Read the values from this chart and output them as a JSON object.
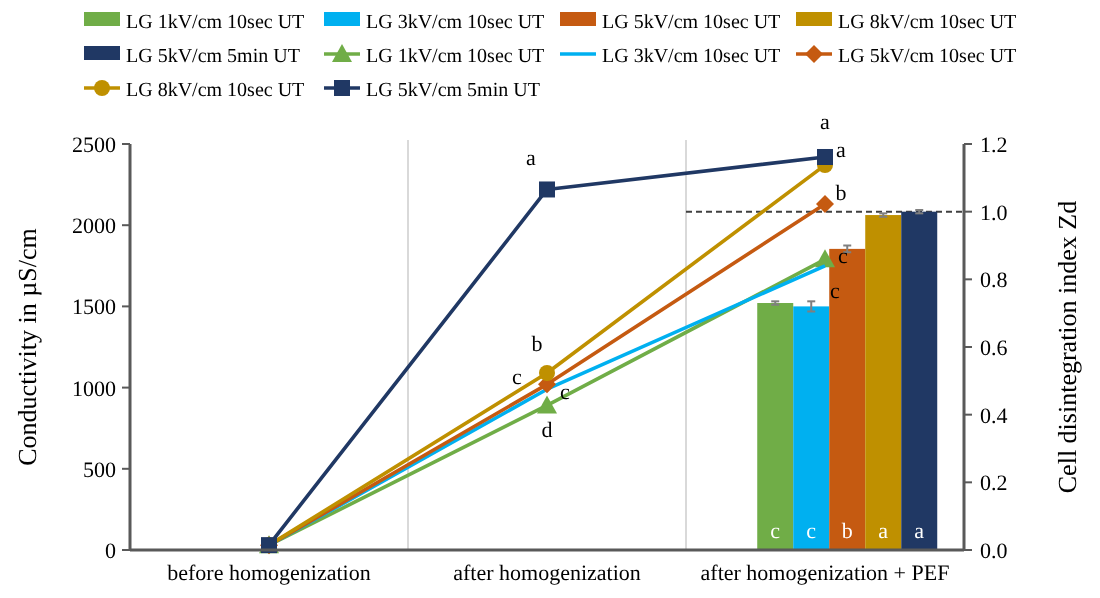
{
  "chart_data": {
    "type": "line",
    "categories": [
      "before homogenization",
      "after homogenization",
      "after homogenization + PEF"
    ],
    "ylabel": "Conductivity in µS/cm",
    "y2label": "Cell disintegration index Zd",
    "ylim": [
      0,
      2500
    ],
    "yticks": [
      0,
      500,
      1000,
      1500,
      2000,
      2500
    ],
    "y2lim": [
      0,
      1.2
    ],
    "y2ticks": [
      {
        "value": 0,
        "label": "0.0"
      },
      {
        "value": 0.2,
        "label": "0.2"
      },
      {
        "value": 0.4,
        "label": "0.4"
      },
      {
        "value": 0.6,
        "label": "0.6"
      },
      {
        "value": 0.8,
        "label": "0.8"
      },
      {
        "value": 1,
        "label": "1.0"
      },
      {
        "value": 1.2,
        "label": "1.2"
      }
    ],
    "grid": "x",
    "legend": "top",
    "ref_lines": [
      {
        "axis": "y2",
        "value": 1,
        "color": "#404040",
        "line_style": "dashed"
      }
    ],
    "series": [
      {
        "type": "bar",
        "axis": "y2",
        "name": "LG 1kV/cm 10sec UT",
        "color": "#70ad47",
        "values": [
          null,
          null,
          0.73
        ],
        "errors": [
          null,
          null,
          0.005
        ],
        "value_labels": [
          null,
          null,
          "c"
        ]
      },
      {
        "type": "bar",
        "axis": "y2",
        "name": "LG 3kV/cm 10sec UT",
        "color": "#00b0f0",
        "values": [
          null,
          null,
          0.72
        ],
        "errors": [
          null,
          null,
          0.015
        ],
        "value_labels": [
          null,
          null,
          "c"
        ]
      },
      {
        "type": "bar",
        "axis": "y2",
        "name": "LG 5kV/cm 10sec UT",
        "color": "#c55a11",
        "values": [
          null,
          null,
          0.89
        ],
        "errors": [
          null,
          null,
          0.01
        ],
        "value_labels": [
          null,
          null,
          "b"
        ]
      },
      {
        "type": "bar",
        "axis": "y2",
        "name": "LG 8kV/cm 10sec UT",
        "color": "#bf9000",
        "values": [
          null,
          null,
          0.99
        ],
        "errors": [
          null,
          null,
          0.005
        ],
        "value_labels": [
          null,
          null,
          "a"
        ]
      },
      {
        "type": "bar",
        "axis": "y2",
        "name": "LG 5kV/cm 5min UT",
        "color": "#203864",
        "values": [
          null,
          null,
          1.0
        ],
        "errors": [
          null,
          null,
          0.005
        ],
        "value_labels": [
          null,
          null,
          "a"
        ]
      },
      {
        "axis": "y",
        "name": "LG 1kV/cm 10sec UT",
        "color": "#70ad47",
        "marker": "triangle",
        "values": [
          30,
          890,
          1790
        ],
        "value_labels": [
          null,
          "d",
          "c"
        ]
      },
      {
        "axis": "y",
        "name": "LG 3kV/cm 10sec UT",
        "color": "#00b0f0",
        "marker": "none",
        "values": [
          30,
          990,
          1750
        ],
        "value_labels": [
          null,
          "c",
          "c"
        ]
      },
      {
        "axis": "y",
        "name": "LG 5kV/cm 10sec UT",
        "color": "#c55a11",
        "marker": "diamond",
        "values": [
          30,
          1020,
          2130
        ],
        "value_labels": [
          null,
          "c",
          "b"
        ]
      },
      {
        "axis": "y",
        "name": "LG 8kV/cm 10sec UT",
        "color": "#bf9000",
        "marker": "circle",
        "values": [
          30,
          1090,
          2370
        ],
        "value_labels": [
          null,
          "b",
          "a"
        ]
      },
      {
        "axis": "y",
        "name": "LG 5kV/cm 5min UT",
        "color": "#203864",
        "marker": "square",
        "values": [
          30,
          2220,
          2420
        ],
        "value_labels": [
          null,
          "a",
          "a"
        ]
      }
    ]
  }
}
